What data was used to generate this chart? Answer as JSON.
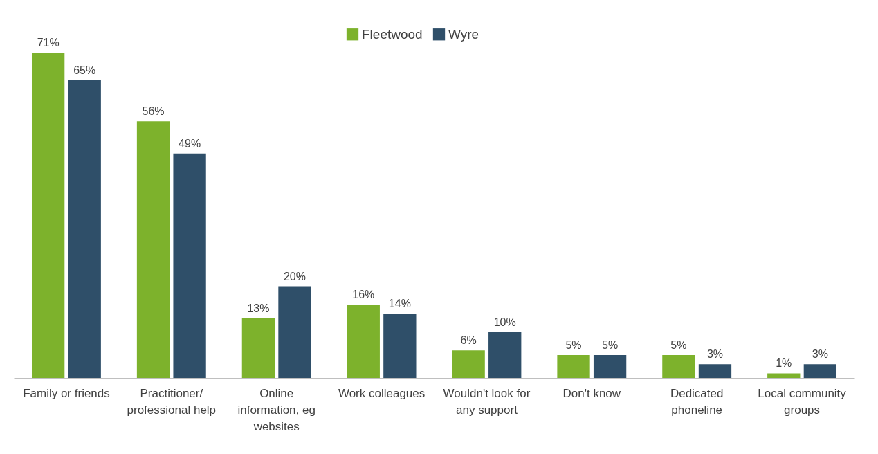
{
  "chart_data": {
    "type": "bar",
    "categories": [
      "Family or friends",
      "Practitioner/ professional help",
      "Online information, eg websites",
      "Work colleagues",
      "Wouldn't look for any support",
      "Don't know",
      "Dedicated phoneline",
      "Local community groups"
    ],
    "series": [
      {
        "name": "Fleetwood",
        "color": "#7db22c",
        "values": [
          71,
          56,
          13,
          16,
          6,
          5,
          5,
          1
        ],
        "value_labels": [
          "71%",
          "56%",
          "13%",
          "16%",
          "6%",
          "5%",
          "5%",
          "1%"
        ]
      },
      {
        "name": "Wyre",
        "color": "#2f4f69",
        "values": [
          65,
          49,
          20,
          14,
          10,
          5,
          3,
          3
        ],
        "value_labels": [
          "65%",
          "49%",
          "20%",
          "14%",
          "10%",
          "5%",
          "3%",
          "3%"
        ]
      }
    ],
    "legend": "top",
    "tick_labels": "x"
  }
}
